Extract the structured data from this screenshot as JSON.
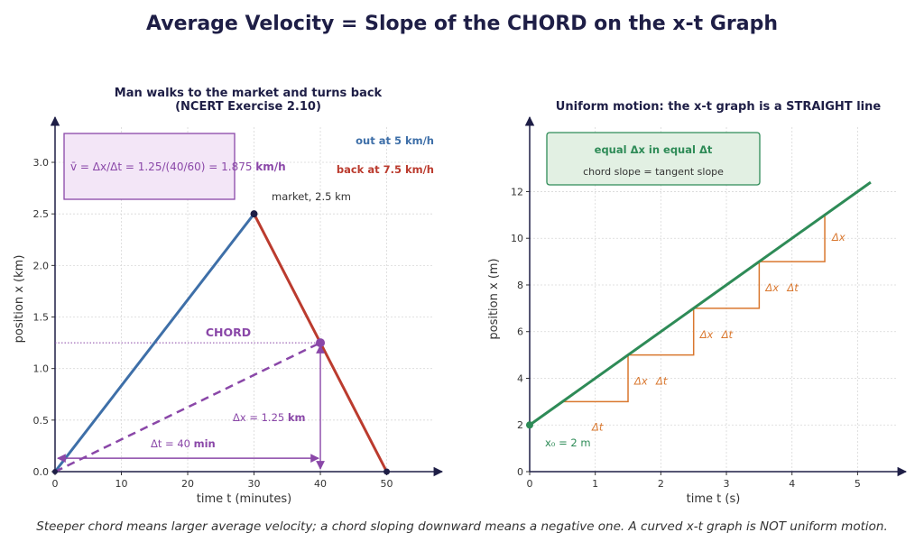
{
  "title": "Average Velocity = Slope of the CHORD on the x-t Graph",
  "caption": "Steeper chord means larger average velocity; a chord sloping downward means a negative one. A curved x-t graph is NOT uniform motion.",
  "colors": {
    "out": "#3e6fa8",
    "back": "#bb3b2e",
    "chord": "#8a47a8",
    "uniform": "#2e8b57",
    "steps": "#d9772e",
    "axis": "#1e1e46"
  },
  "chart_data": [
    {
      "type": "line",
      "title": "Man walks to the market and turns back",
      "subtitle": "(NCERT Exercise 2.10)",
      "xlabel": "time  t  (minutes)",
      "ylabel": "position  x  (km)",
      "xlim": [
        0,
        57
      ],
      "ylim": [
        0,
        3.35
      ],
      "xticks": [
        0,
        10,
        20,
        30,
        40,
        50
      ],
      "yticks": [
        0.0,
        0.5,
        1.0,
        1.5,
        2.0,
        2.5,
        3.0
      ],
      "xtick_labels": [
        "0",
        "10",
        "20",
        "30",
        "40",
        "50"
      ],
      "ytick_labels": [
        "0.0",
        "0.5",
        "1.0",
        "1.5",
        "2.0",
        "2.5",
        "3.0"
      ],
      "grid": true,
      "series": [
        {
          "name": "out at 5 km/h",
          "x": [
            0,
            30
          ],
          "y": [
            0,
            2.5
          ]
        },
        {
          "name": "back at 7.5 km/h",
          "x": [
            30,
            50
          ],
          "y": [
            2.5,
            0
          ]
        }
      ],
      "chord": {
        "label": "CHORD",
        "x": [
          0,
          40
        ],
        "y": [
          0,
          1.25
        ]
      },
      "annotations": {
        "formula_prefix": "v̄ = Δx/Δt = 1.25/(40/60) = 1.875",
        "formula_unit": "km/h",
        "market_label": "market, 2.5 km",
        "dx_prefix": "Δx = 1.25",
        "dx_unit": "km",
        "dt_prefix": "Δt = 40",
        "dt_unit": "min"
      }
    },
    {
      "type": "line",
      "title": "Uniform motion: the x-t graph is a STRAIGHT line",
      "xlabel": "time  t  (s)",
      "ylabel": "position  x  (m)",
      "xlim": [
        0,
        5.6
      ],
      "ylim": [
        0,
        14.8
      ],
      "xticks": [
        0,
        1,
        2,
        3,
        4,
        5
      ],
      "yticks": [
        0,
        2,
        4,
        6,
        8,
        10,
        12
      ],
      "xtick_labels": [
        "0",
        "1",
        "2",
        "3",
        "4",
        "5"
      ],
      "ytick_labels": [
        "0",
        "2",
        "4",
        "6",
        "8",
        "10",
        "12"
      ],
      "grid": true,
      "series": [
        {
          "x": [
            0,
            5.2
          ],
          "y": [
            2,
            12.4
          ]
        }
      ],
      "steps": [
        {
          "t0": 0.5,
          "t1": 1.5,
          "x0": 3,
          "x1": 5
        },
        {
          "t0": 1.5,
          "t1": 2.5,
          "x0": 5,
          "x1": 7
        },
        {
          "t0": 2.5,
          "t1": 3.5,
          "x0": 7,
          "x1": 9
        },
        {
          "t0": 3.5,
          "t1": 4.5,
          "x0": 9,
          "x1": 11
        }
      ],
      "annotations": {
        "box_line1": "equal Δx in equal Δt",
        "box_line2": "chord slope = tangent slope",
        "x0_label": "x₀ = 2 m",
        "dx_label": "Δx",
        "dt_label": "Δt"
      }
    }
  ]
}
